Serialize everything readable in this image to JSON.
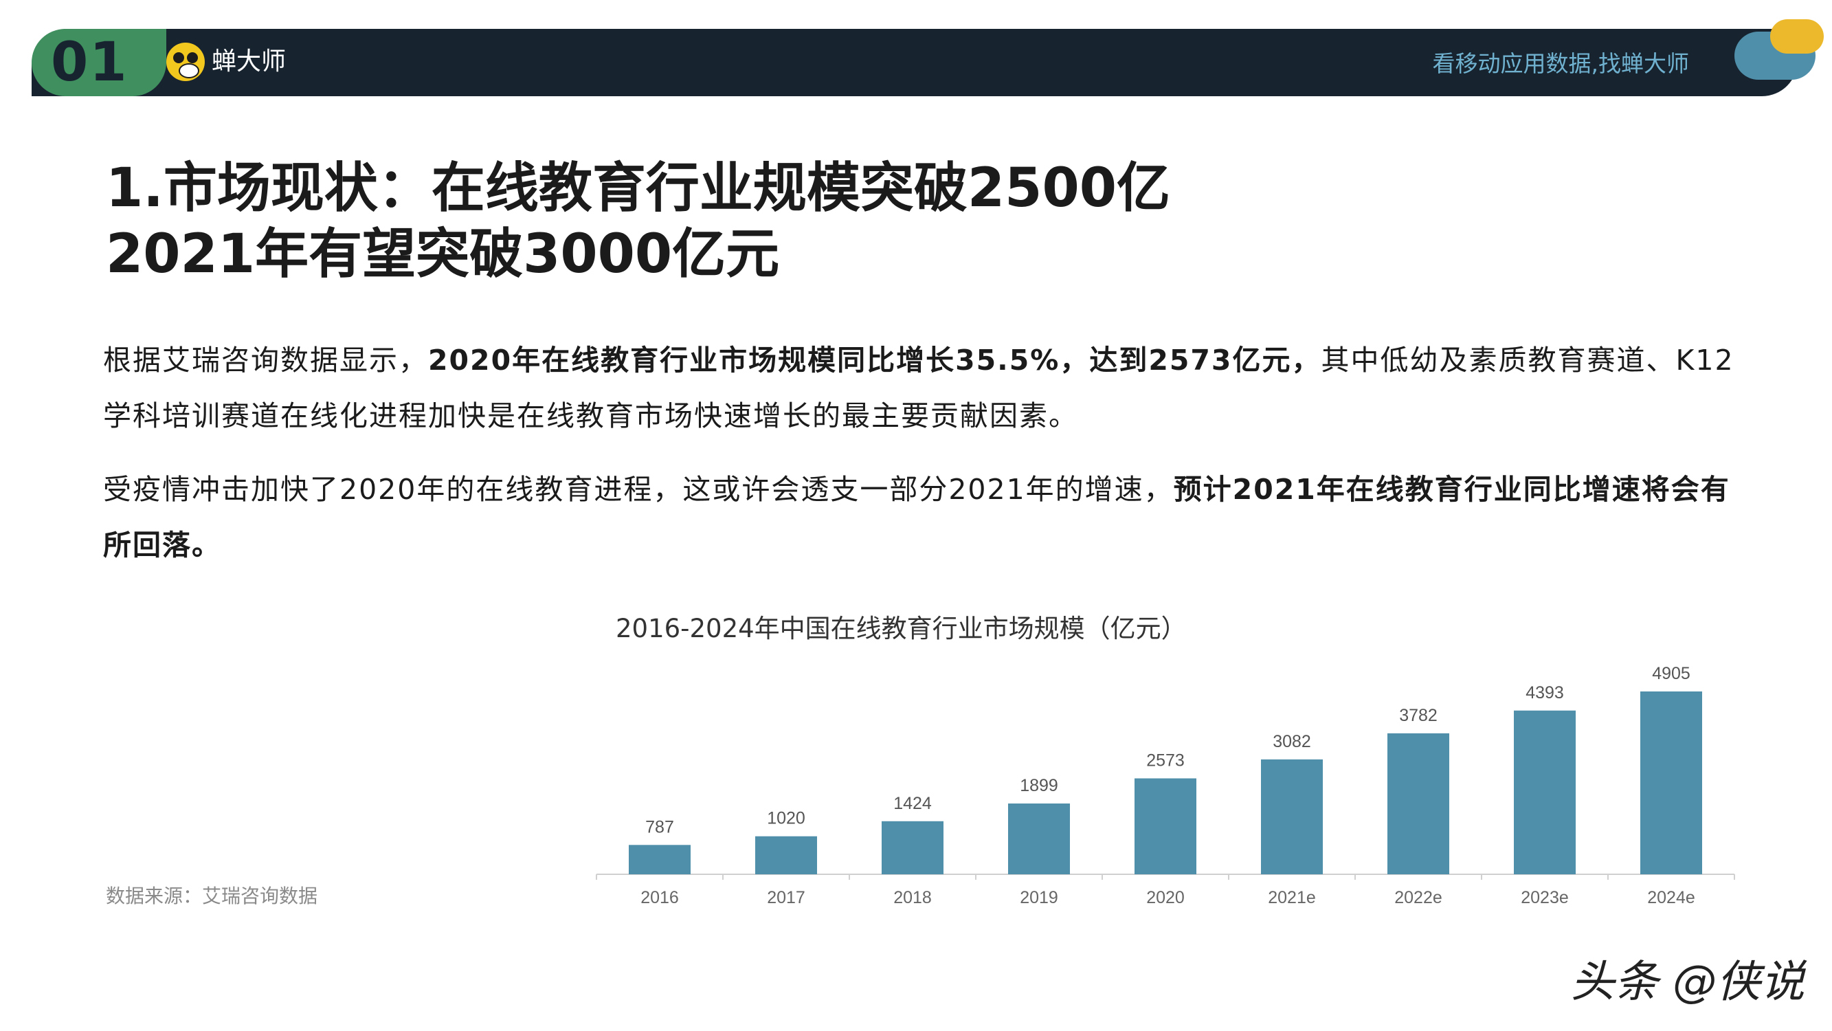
{
  "header": {
    "section_number": "01",
    "brand": "蝉大师",
    "slogan": "看移动应用数据,找蝉大师"
  },
  "title": {
    "line1": "1.市场现状：在线教育行业规模突破2500亿",
    "line2": "2021年有望突破3000亿元"
  },
  "paragraphs": {
    "p1_a": "根据艾瑞咨询数据显示，",
    "p1_b": "2020年在线教育行业市场规模同比增长35.5%，达到2573亿元，",
    "p1_c": "其中低幼及素质教育赛道、K12学科培训赛道在线化进程加快是在线教育市场快速增长的最主要贡献因素。",
    "p2_a": "受疫情冲击加快了2020年的在线教育进程，这或许会透支一部分2021年的增速，",
    "p2_b": "预计2021年在线教育行业同比增速将会有所回落。"
  },
  "source": "数据来源：艾瑞咨询数据",
  "watermark": "头条 @侠说",
  "colors": {
    "header_bg": "#172430",
    "header_badge": "#3f8f5f",
    "bar": "#4f8faa",
    "slogan": "#6fb1cf"
  },
  "chart_data": {
    "type": "bar",
    "title": "2016-2024年中国在线教育行业市场规模（亿元）",
    "categories": [
      "2016",
      "2017",
      "2018",
      "2019",
      "2020",
      "2021e",
      "2022e",
      "2023e",
      "2024e"
    ],
    "values": [
      787,
      1020,
      1424,
      1899,
      2573,
      3082,
      3782,
      4393,
      4905
    ],
    "ylim": [
      0,
      4905
    ],
    "xlabel": "",
    "ylabel": "",
    "grid": false,
    "data_labels": true
  }
}
